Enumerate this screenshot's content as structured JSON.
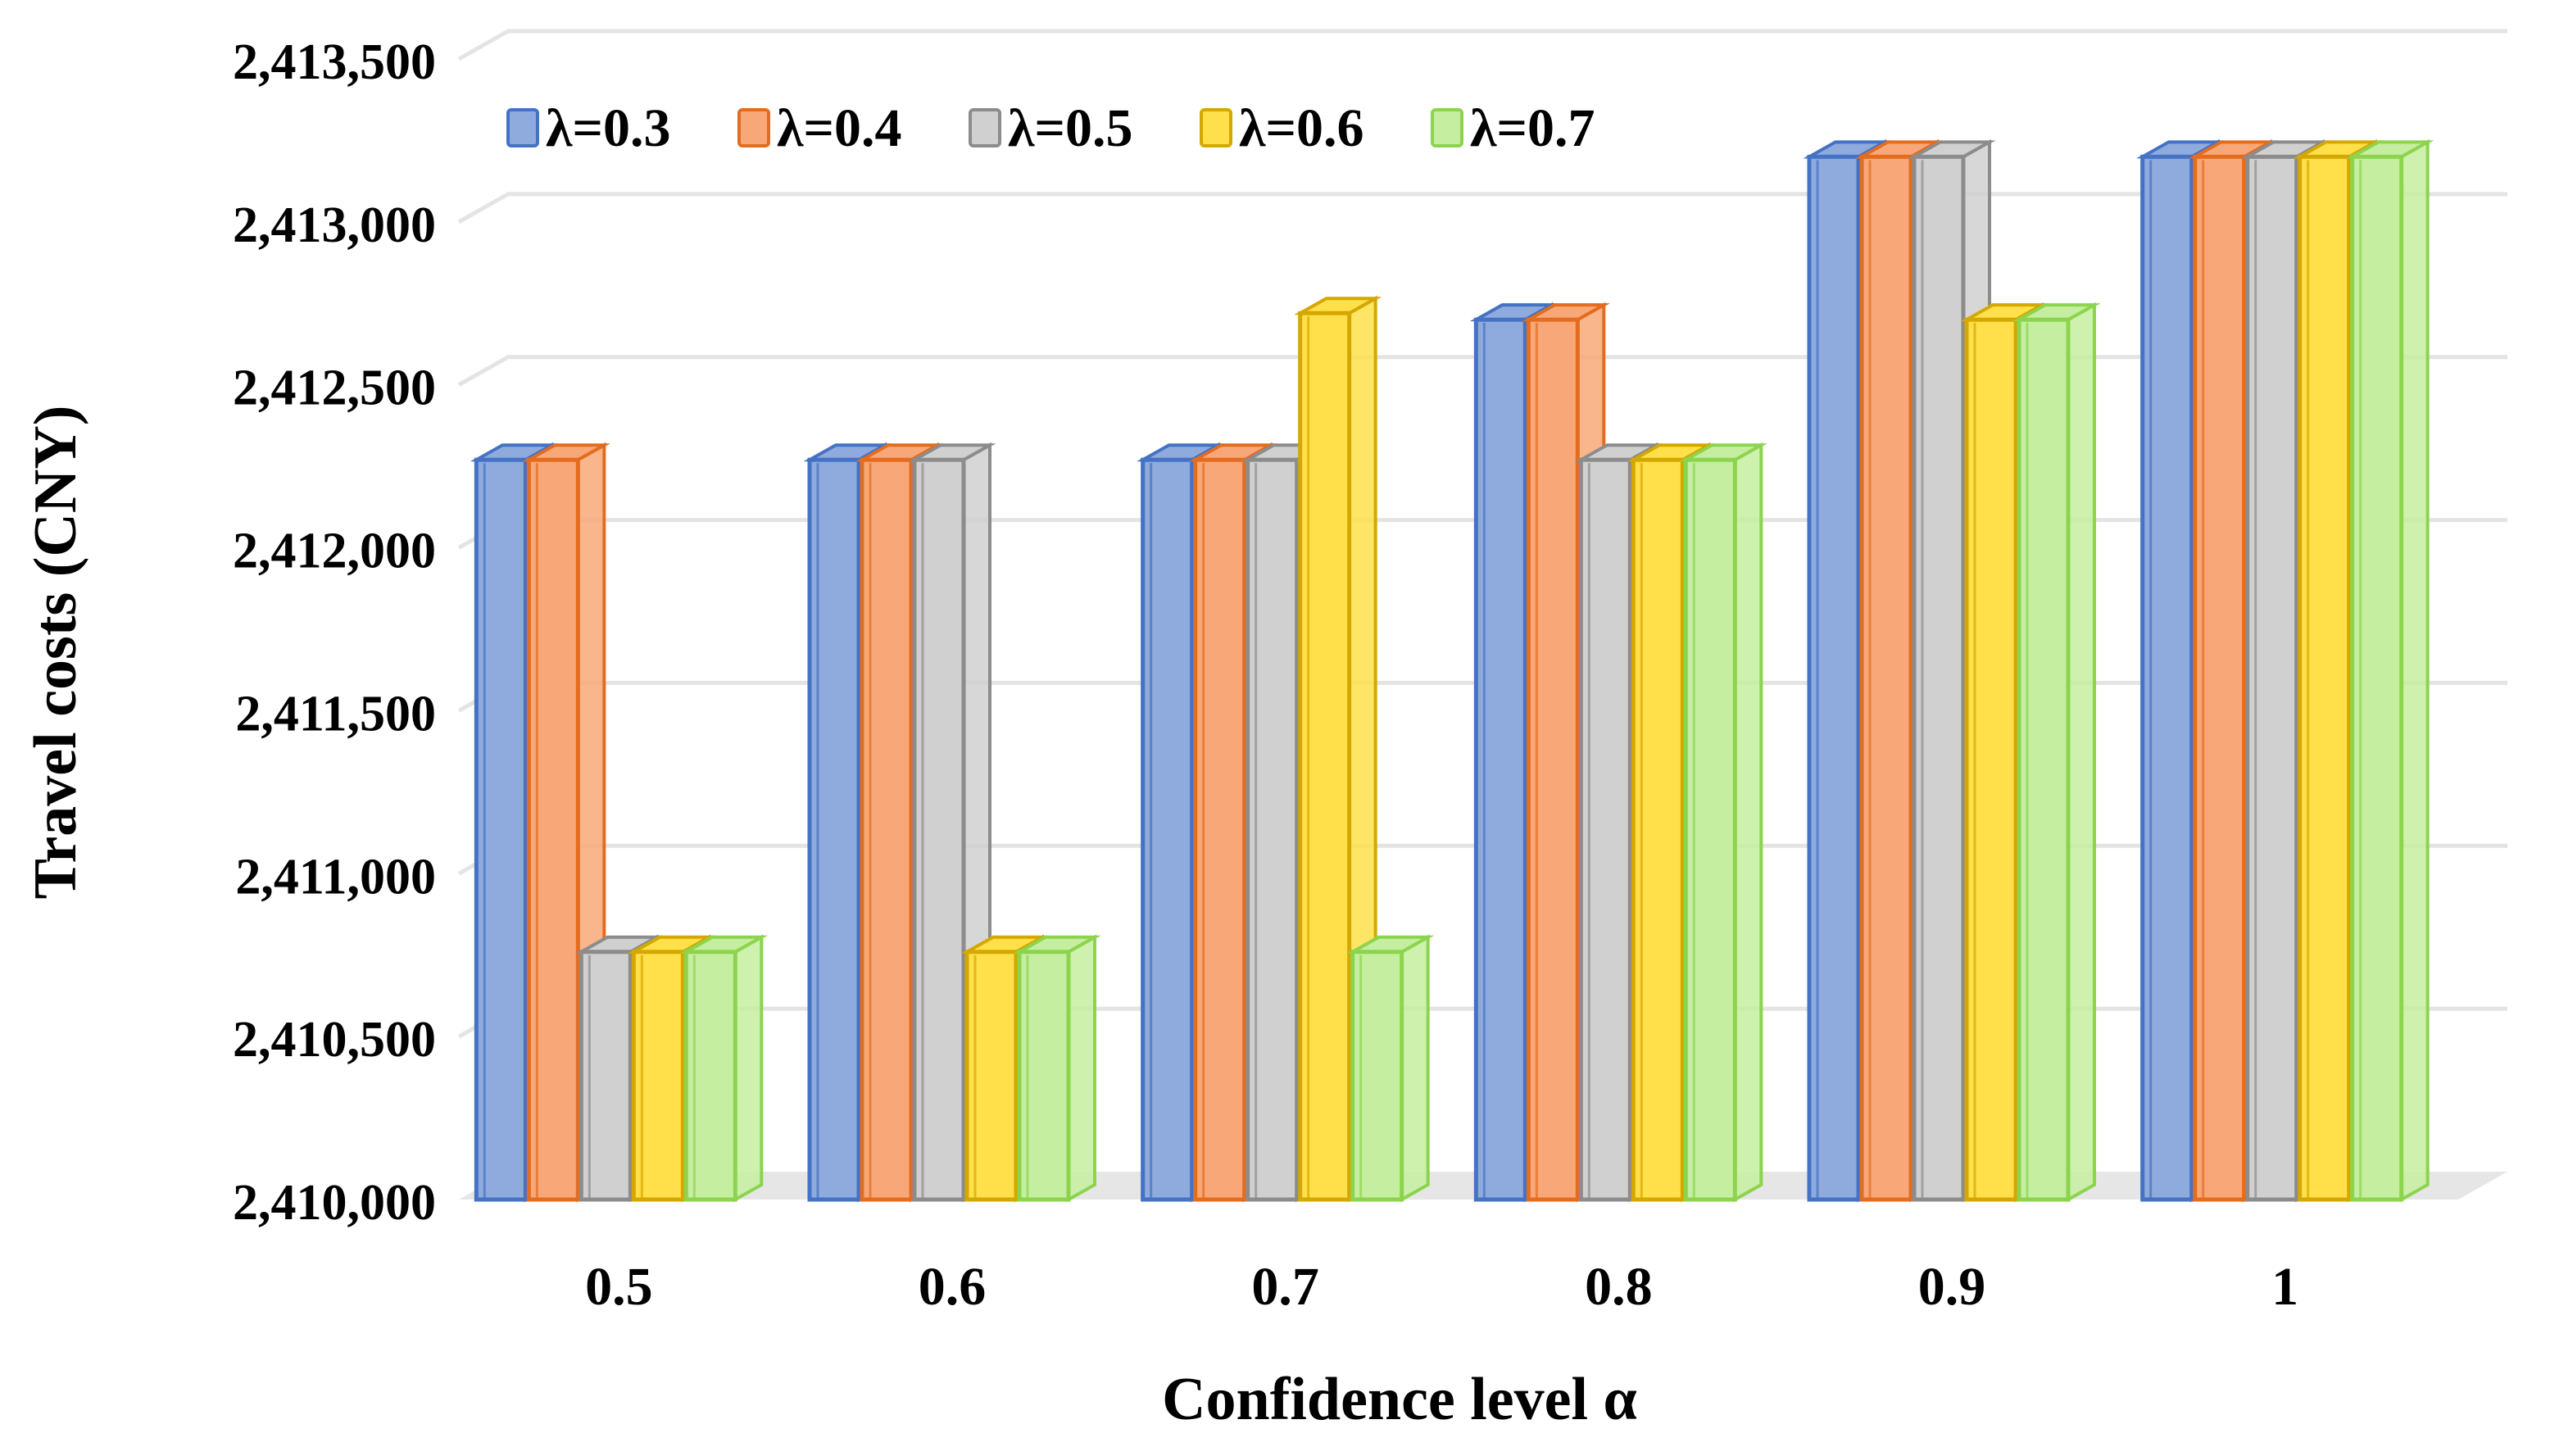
{
  "chart_data": {
    "type": "bar",
    "style": "3d-clustered-column",
    "title": "",
    "xlabel": "Confidence level α",
    "ylabel": "Travel costs (CNY)",
    "categories": [
      "0.5",
      "0.6",
      "0.7",
      "0.8",
      "0.9",
      "1"
    ],
    "ylim": [
      2410000,
      2413500
    ],
    "yticks": [
      2410000,
      2410500,
      2411000,
      2411500,
      2412000,
      2412500,
      2413000,
      2413500
    ],
    "ytick_labels": [
      "2,410,000",
      "2,410,500",
      "2,411,000",
      "2,411,500",
      "2,412,000",
      "2,412,500",
      "2,413,000",
      "2,413,500"
    ],
    "grid": true,
    "legend_position": "top-left",
    "series": [
      {
        "name": "λ=0.3",
        "color": "#4472C4",
        "fill": "#8FAADC",
        "values": [
          2412270,
          2412270,
          2412270,
          2412700,
          2413200,
          2413200
        ]
      },
      {
        "name": "λ=0.4",
        "color": "#E46C1E",
        "fill": "#F8A878",
        "values": [
          2412270,
          2412270,
          2412270,
          2412700,
          2413200,
          2413200
        ]
      },
      {
        "name": "λ=0.5",
        "color": "#8C8C8C",
        "fill": "#D0D0D0",
        "values": [
          2410760,
          2412270,
          2412270,
          2412270,
          2413200,
          2413200
        ]
      },
      {
        "name": "λ=0.6",
        "color": "#D4A800",
        "fill": "#FFE04A",
        "values": [
          2410760,
          2410760,
          2412720,
          2412270,
          2412700,
          2413200
        ]
      },
      {
        "name": "λ=0.7",
        "color": "#8CD44E",
        "fill": "#C6EEA0",
        "values": [
          2410760,
          2410760,
          2410760,
          2412270,
          2412700,
          2413200
        ]
      }
    ]
  }
}
